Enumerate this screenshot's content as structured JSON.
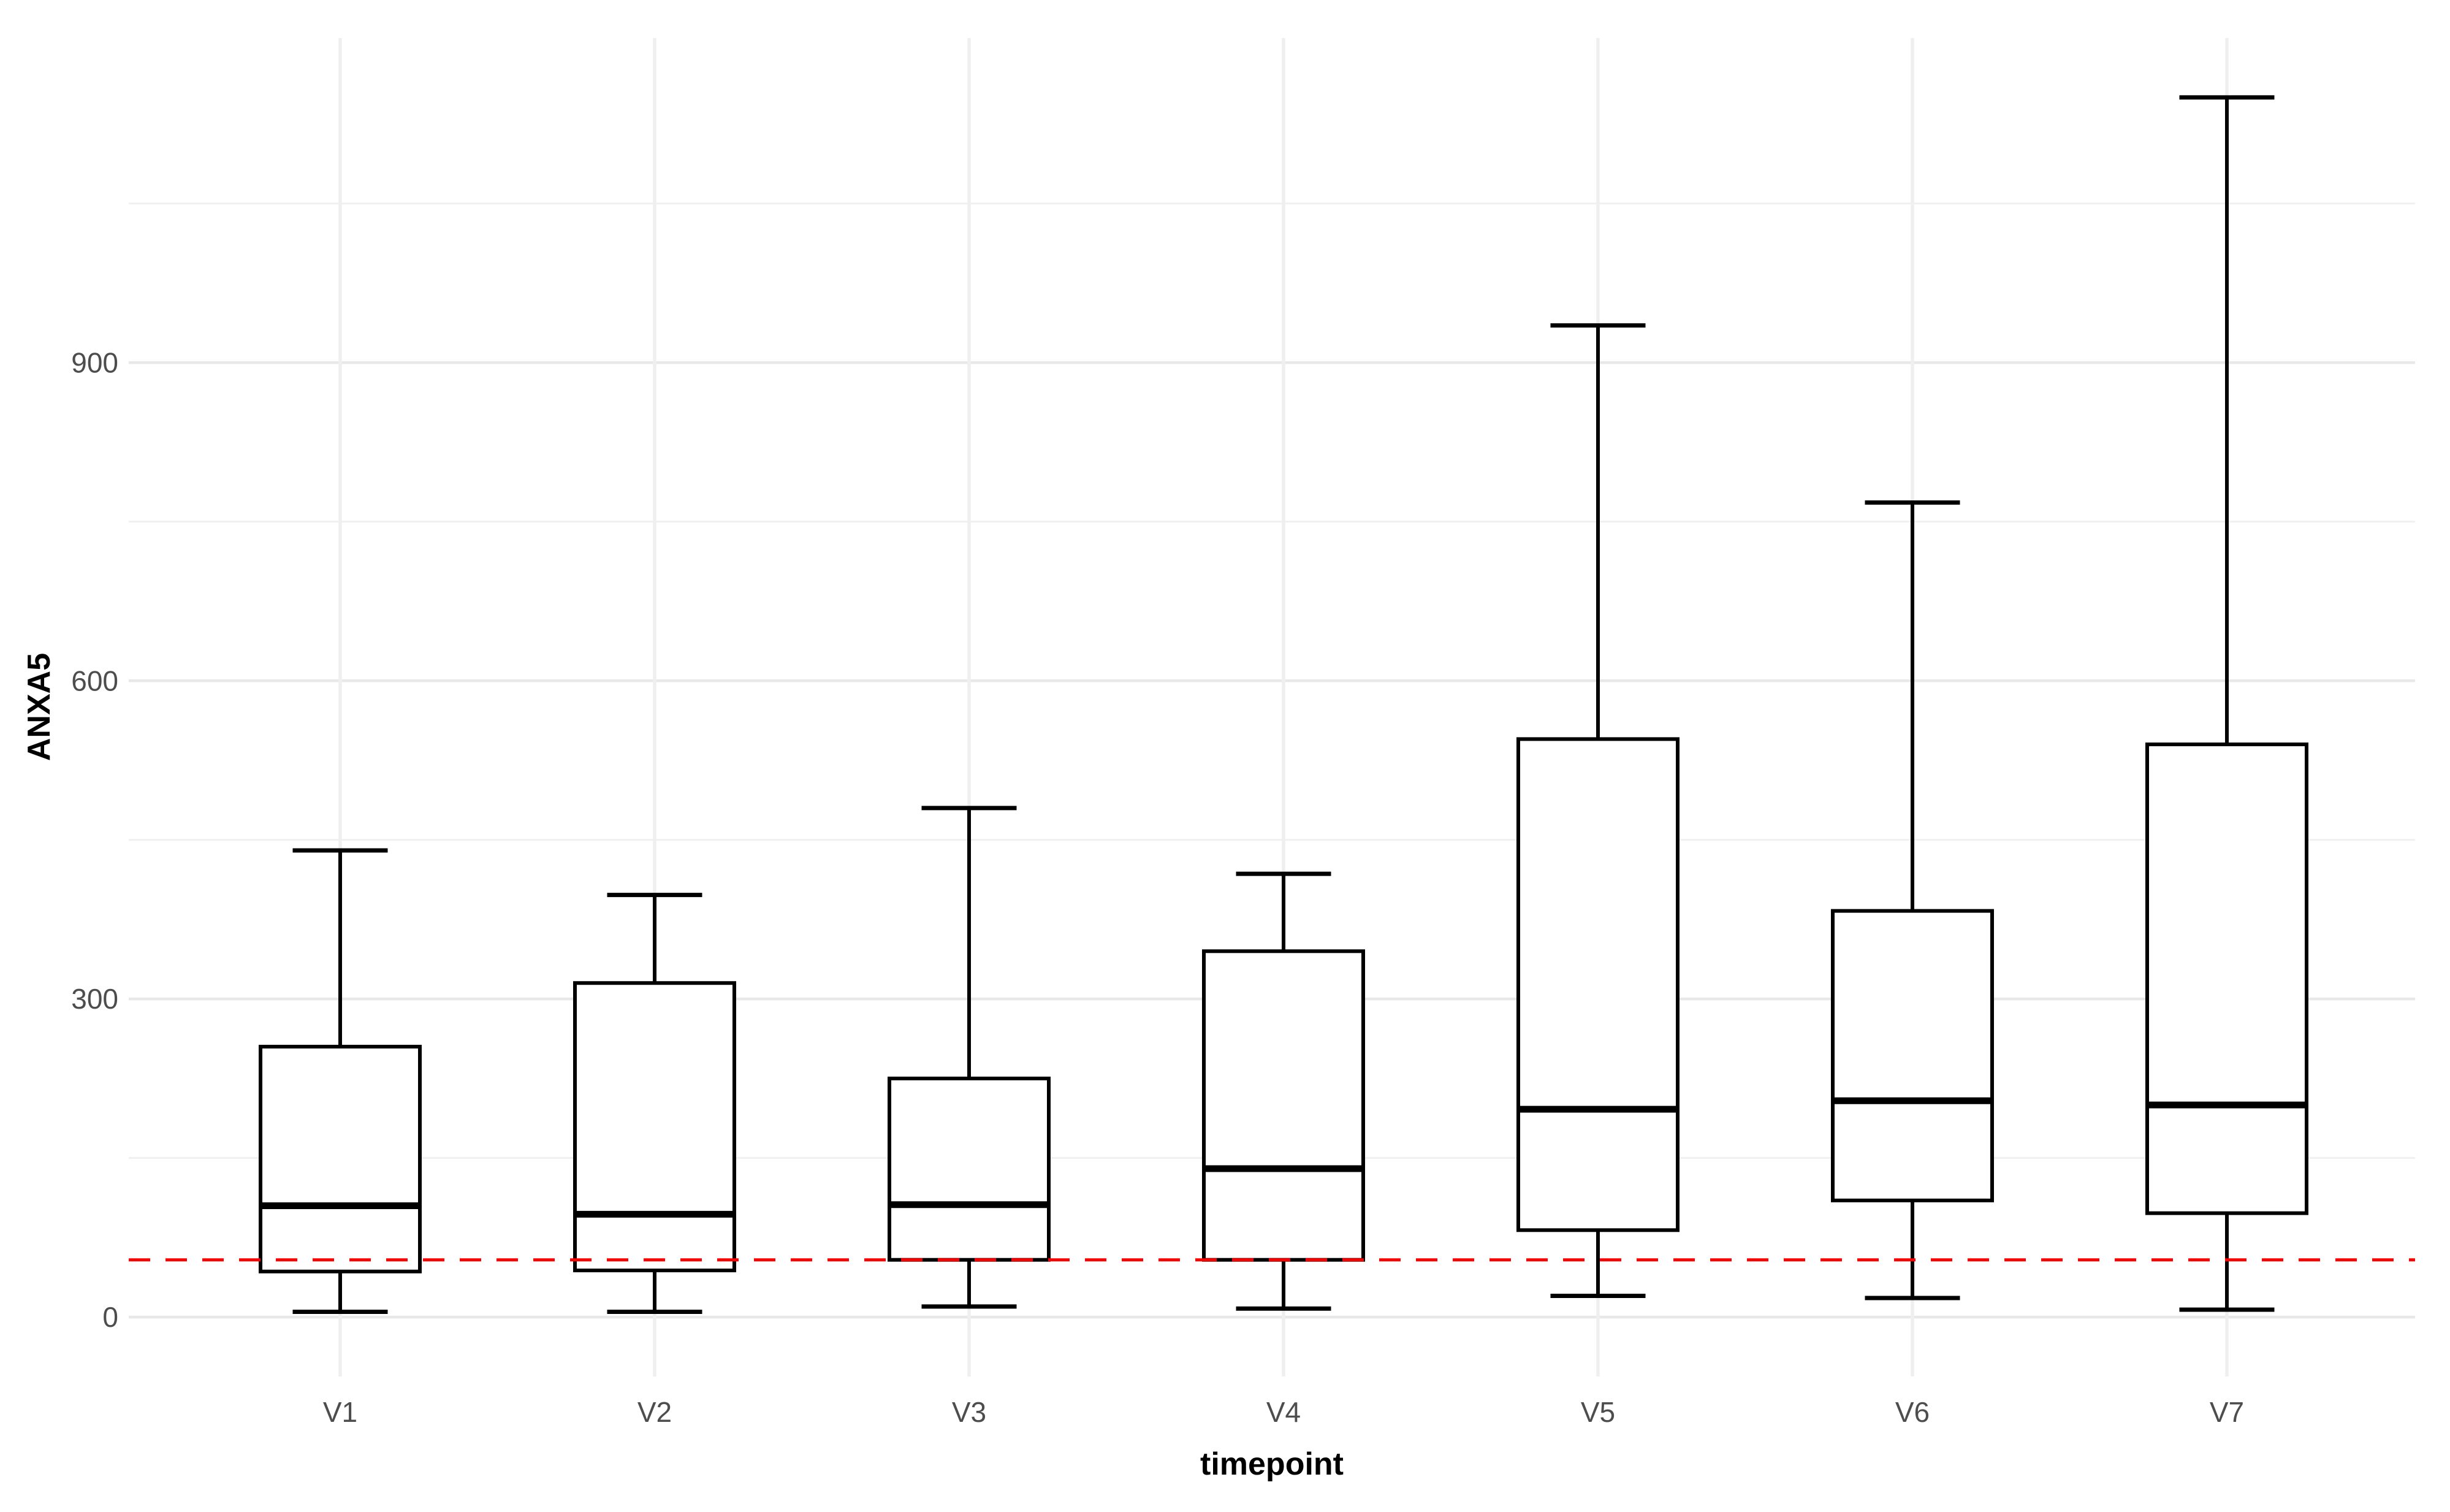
{
  "chart_data": {
    "type": "boxplot",
    "title": "",
    "xlabel": "timepoint",
    "ylabel": "ANXA5",
    "categories": [
      "V1",
      "V2",
      "V3",
      "V4",
      "V5",
      "V6",
      "V7"
    ],
    "series": [
      {
        "category": "V1",
        "min": 5,
        "q1": 43,
        "median": 105,
        "q3": 255,
        "max": 440
      },
      {
        "category": "V2",
        "min": 5,
        "q1": 44,
        "median": 97,
        "q3": 315,
        "max": 398
      },
      {
        "category": "V3",
        "min": 10,
        "q1": 54,
        "median": 106,
        "q3": 225,
        "max": 480
      },
      {
        "category": "V4",
        "min": 8,
        "q1": 54,
        "median": 140,
        "q3": 345,
        "max": 418
      },
      {
        "category": "V5",
        "min": 20,
        "q1": 82,
        "median": 196,
        "q3": 545,
        "max": 935
      },
      {
        "category": "V6",
        "min": 18,
        "q1": 110,
        "median": 204,
        "q3": 383,
        "max": 768
      },
      {
        "category": "V7",
        "min": 7,
        "q1": 98,
        "median": 200,
        "q3": 540,
        "max": 1150
      }
    ],
    "yticks": [
      0,
      300,
      600,
      900
    ],
    "yticks_minor": [
      150,
      450,
      750,
      1050
    ],
    "ylim": [
      -56,
      1206
    ],
    "grid": {
      "horizontal_major": true,
      "horizontal_minor": true,
      "vertical_at_categories": true
    },
    "legend": null,
    "reference_line": {
      "value": 54,
      "style": "dashed",
      "color": "#FF0000"
    }
  },
  "colors": {
    "background": "#FFFFFF",
    "grid_major": "#E8E8E8",
    "grid_minor": "#F0F0F0",
    "grid_vertical": "#EFEFEF",
    "box_stroke": "#000000",
    "box_fill": "#FFFFFF",
    "tick_label": "#4D4D4D",
    "axis_title": "#000000",
    "reference_line": "#FF0000"
  }
}
